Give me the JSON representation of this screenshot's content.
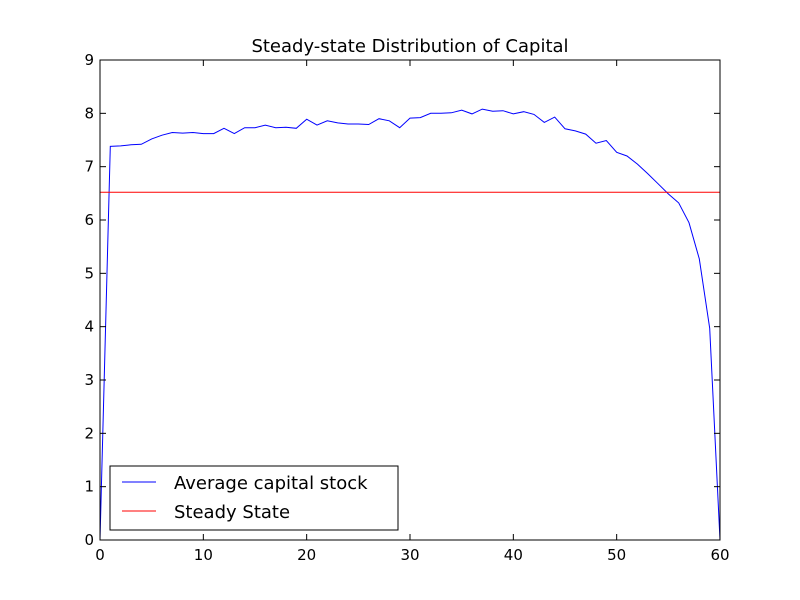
{
  "chart_data": {
    "type": "line",
    "title": "Steady-state Distribution of Capital",
    "xlabel": "",
    "ylabel": "",
    "xlim": [
      0,
      60
    ],
    "ylim": [
      0,
      9
    ],
    "xticks": [
      0,
      10,
      20,
      30,
      40,
      50,
      60
    ],
    "yticks": [
      0,
      1,
      2,
      3,
      4,
      5,
      6,
      7,
      8,
      9
    ],
    "grid": false,
    "legend_position": "lower-left",
    "series": [
      {
        "name": "Average capital stock",
        "color": "#0000ff",
        "x": [
          0,
          1,
          2,
          3,
          4,
          5,
          6,
          7,
          8,
          9,
          10,
          11,
          12,
          13,
          14,
          15,
          16,
          17,
          18,
          19,
          20,
          21,
          22,
          23,
          24,
          25,
          26,
          27,
          28,
          29,
          30,
          31,
          32,
          33,
          34,
          35,
          36,
          37,
          38,
          39,
          40,
          41,
          42,
          43,
          44,
          45,
          46,
          47,
          48,
          49,
          50,
          51,
          52,
          53,
          54,
          55,
          56,
          57,
          58,
          59,
          60
        ],
        "y": [
          0,
          7.38,
          7.39,
          7.41,
          7.42,
          7.52,
          7.59,
          7.64,
          7.63,
          7.64,
          7.62,
          7.62,
          7.72,
          7.62,
          7.73,
          7.73,
          7.78,
          7.73,
          7.74,
          7.72,
          7.89,
          7.78,
          7.86,
          7.82,
          7.8,
          7.8,
          7.79,
          7.9,
          7.86,
          7.73,
          7.91,
          7.92,
          8.0,
          8.0,
          8.01,
          8.06,
          7.99,
          8.08,
          8.04,
          8.05,
          7.99,
          8.03,
          7.98,
          7.83,
          7.93,
          7.71,
          7.67,
          7.61,
          7.44,
          7.49,
          7.27,
          7.2,
          7.05,
          6.87,
          6.68,
          6.49,
          6.32,
          5.95,
          5.27,
          3.97,
          0
        ]
      },
      {
        "name": "Steady State",
        "color": "#ff0000",
        "x": [
          0,
          60
        ],
        "y": [
          6.52,
          6.52
        ]
      }
    ]
  }
}
